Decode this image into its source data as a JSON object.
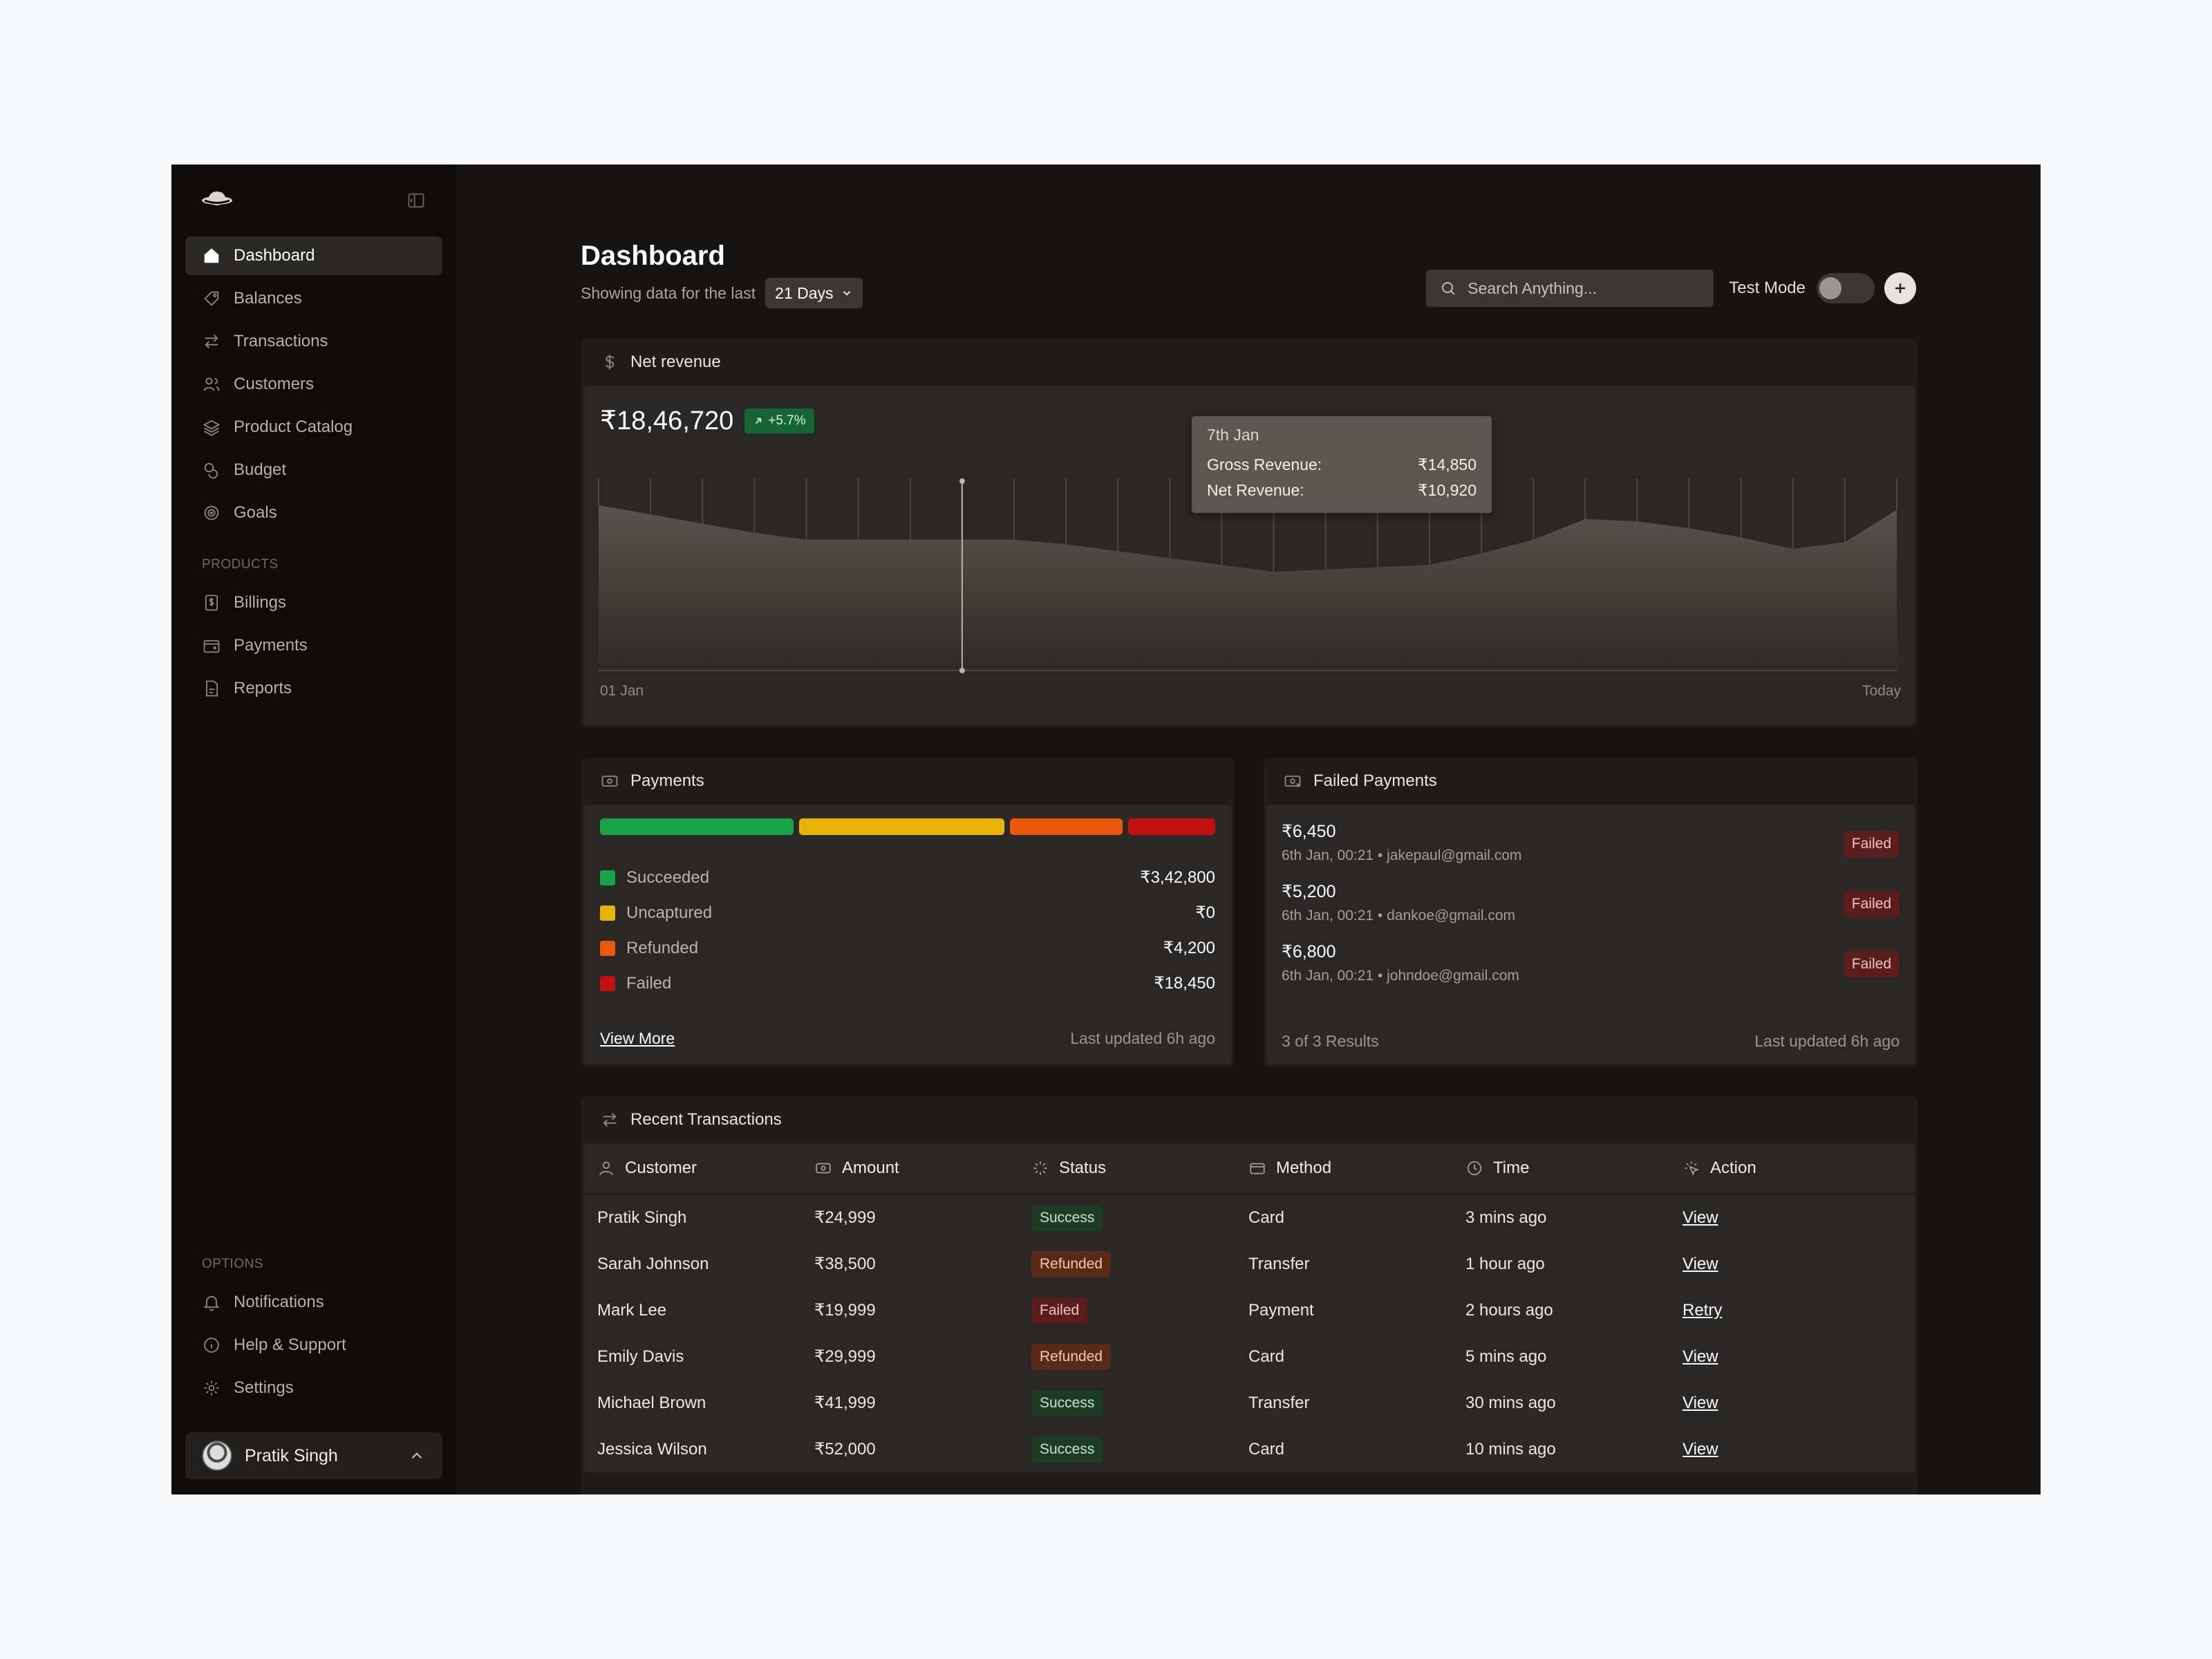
{
  "sidebar": {
    "nav": [
      {
        "label": "Dashboard",
        "icon": "home-icon",
        "active": true
      },
      {
        "label": "Balances",
        "icon": "tag-icon"
      },
      {
        "label": "Transactions",
        "icon": "arrows-icon"
      },
      {
        "label": "Customers",
        "icon": "users-icon"
      },
      {
        "label": "Product Catalog",
        "icon": "layers-icon"
      },
      {
        "label": "Budget",
        "icon": "coins-icon"
      },
      {
        "label": "Goals",
        "icon": "target-icon"
      }
    ],
    "products_label": "PRODUCTS",
    "products": [
      {
        "label": "Billings",
        "icon": "dollar-file-icon"
      },
      {
        "label": "Payments",
        "icon": "wallet-icon"
      },
      {
        "label": "Reports",
        "icon": "report-icon"
      }
    ],
    "options_label": "OPTIONS",
    "options": [
      {
        "label": "Notifications",
        "icon": "bell-icon"
      },
      {
        "label": "Help & Support",
        "icon": "info-icon"
      },
      {
        "label": "Settings",
        "icon": "gear-icon"
      }
    ],
    "user": {
      "name": "Pratik Singh"
    }
  },
  "header": {
    "title": "Dashboard",
    "subtitle": "Showing data for the last",
    "range": "21 Days",
    "search_placeholder": "Search Anything...",
    "test_mode_label": "Test Mode",
    "test_mode_on": false
  },
  "revenue": {
    "title": "Net revenue",
    "value": "₹18,46,720",
    "change": "+5.7%",
    "x_start": "01 Jan",
    "x_end": "Today",
    "tooltip": {
      "date": "7th Jan",
      "gross_label": "Gross Revenue:",
      "gross_value": "₹14,850",
      "net_label": "Net Revenue:",
      "net_value": "₹10,920"
    }
  },
  "chart_data": {
    "type": "area",
    "x": [
      "01 Jan",
      "",
      "",
      "",
      "",
      "",
      "",
      "7th Jan",
      "",
      "",
      "",
      "",
      "",
      "",
      "",
      "",
      "",
      "",
      "",
      "",
      "",
      "",
      "",
      "",
      "",
      "Today"
    ],
    "series": [
      {
        "values": [
          72,
          68,
          64,
          60,
          57,
          57,
          57,
          57,
          57,
          55,
          52,
          49,
          46,
          43,
          44,
          45,
          46,
          51,
          57,
          66,
          65,
          62,
          58,
          53,
          56,
          70
        ]
      }
    ],
    "grid": false
  },
  "payments": {
    "title": "Payments",
    "segments": [
      {
        "name": "Succeeded",
        "value": "₹3,42,800",
        "color": "#16a34a",
        "weight": 31
      },
      {
        "name": "Uncaptured",
        "value": "₹0",
        "color": "#eab308",
        "weight": 33
      },
      {
        "name": "Refunded",
        "value": "₹4,200",
        "color": "#ea580c",
        "weight": 18
      },
      {
        "name": "Failed",
        "value": "₹18,450",
        "color": "#c10f0f",
        "weight": 14
      }
    ],
    "view_more": "View More",
    "updated": "Last updated 6h ago"
  },
  "failed": {
    "title": "Failed Payments",
    "items": [
      {
        "amount": "₹6,450",
        "meta": "6th Jan, 00:21  •  jakepaul@gmail.com",
        "status": "Failed"
      },
      {
        "amount": "₹5,200",
        "meta": "6th Jan, 00:21  •  dankoe@gmail.com",
        "status": "Failed"
      },
      {
        "amount": "₹6,800",
        "meta": "6th Jan, 00:21  •  johndoe@gmail.com",
        "status": "Failed"
      }
    ],
    "results": "3 of 3 Results",
    "updated": "Last updated 6h ago"
  },
  "transactions": {
    "title": "Recent Transactions",
    "columns": [
      "Customer",
      "Amount",
      "Status",
      "Method",
      "Time",
      "Action"
    ],
    "rows": [
      {
        "customer": "Pratik Singh",
        "amount": "₹24,999",
        "status": "Success",
        "method": "Card",
        "time": "3 mins ago",
        "action": "View"
      },
      {
        "customer": "Sarah Johnson",
        "amount": "₹38,500",
        "status": "Refunded",
        "method": "Transfer",
        "time": "1 hour ago",
        "action": "View"
      },
      {
        "customer": "Mark Lee",
        "amount": "₹19,999",
        "status": "Failed",
        "method": "Payment",
        "time": "2 hours ago",
        "action": "Retry"
      },
      {
        "customer": "Emily Davis",
        "amount": "₹29,999",
        "status": "Refunded",
        "method": "Card",
        "time": "5 mins ago",
        "action": "View"
      },
      {
        "customer": "Michael Brown",
        "amount": "₹41,999",
        "status": "Success",
        "method": "Transfer",
        "time": "30 mins ago",
        "action": "View"
      },
      {
        "customer": "Jessica Wilson",
        "amount": "₹52,000",
        "status": "Success",
        "method": "Card",
        "time": "10 mins ago",
        "action": "View"
      }
    ]
  }
}
